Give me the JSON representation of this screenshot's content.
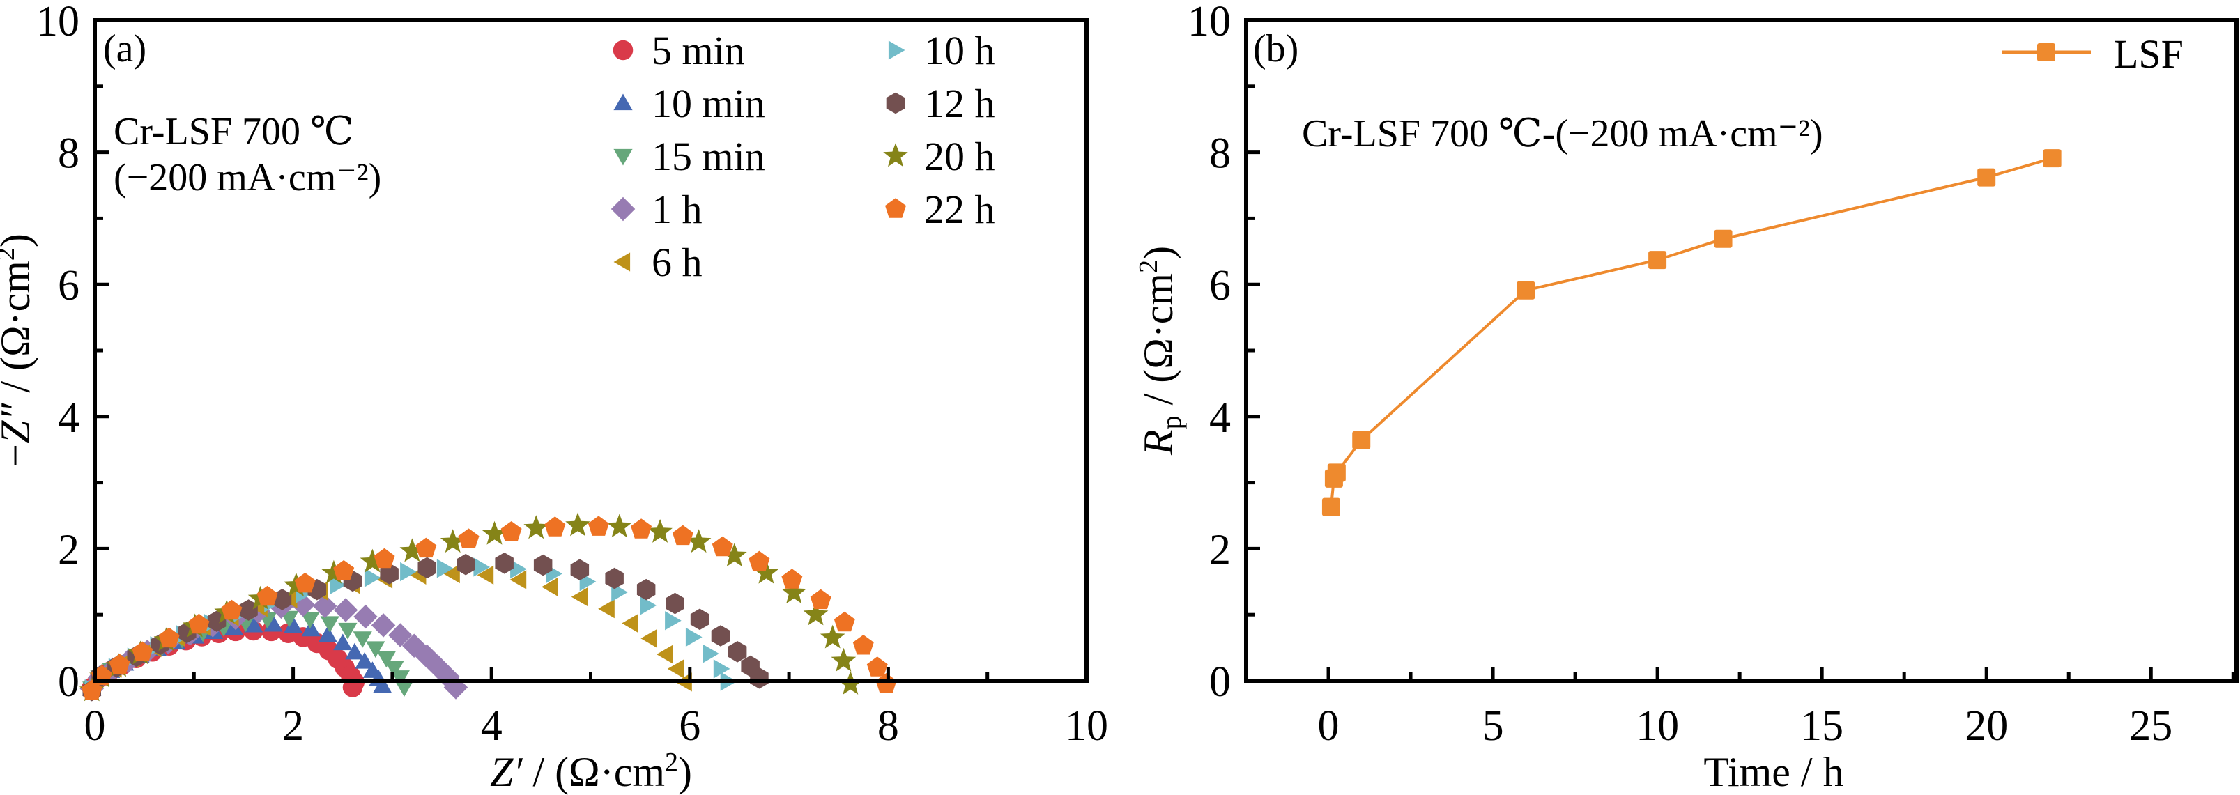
{
  "figure": {
    "panels": [
      "(a)",
      "(b)"
    ]
  },
  "chart_data": [
    {
      "id": "a",
      "type": "scatter",
      "panel_label": "(a)",
      "title": "",
      "annotation_lines": [
        "Cr-LSF 700 ℃",
        "(−200 mA·cm⁻²)"
      ],
      "xlabel": {
        "italic": "Z′",
        "rest": " / (Ω·cm",
        "sup": "2",
        "close": ")"
      },
      "ylabel": {
        "prefix": "−",
        "italic": "Z″",
        "rest": " / (Ω·cm",
        "sup": "2",
        "close": ")"
      },
      "xlim": [
        0,
        10
      ],
      "ylim": [
        0,
        10
      ],
      "xticks": [
        0,
        2,
        4,
        6,
        8,
        10
      ],
      "yticks": [
        0,
        2,
        4,
        6,
        8,
        10
      ],
      "xtick_labels": [
        "0",
        "2",
        "4",
        "6",
        "8",
        "10"
      ],
      "ytick_labels": [
        "0",
        "2",
        "4",
        "6",
        "8",
        "10"
      ],
      "minor_ticks": true,
      "grid": false,
      "legend": {
        "placement": "top-right",
        "columns": 2
      },
      "series": [
        {
          "name": "5 min",
          "marker": "circle",
          "color": "#D93A49",
          "points": [
            [
              -0.03,
              -0.1
            ],
            [
              0.05,
              0.05
            ],
            [
              0.15,
              0.14
            ],
            [
              0.28,
              0.24
            ],
            [
              0.42,
              0.34
            ],
            [
              0.58,
              0.44
            ],
            [
              0.75,
              0.53
            ],
            [
              0.92,
              0.61
            ],
            [
              1.08,
              0.67
            ],
            [
              1.25,
              0.72
            ],
            [
              1.42,
              0.75
            ],
            [
              1.6,
              0.76
            ],
            [
              1.78,
              0.75
            ],
            [
              1.95,
              0.72
            ],
            [
              2.1,
              0.66
            ],
            [
              2.24,
              0.57
            ],
            [
              2.36,
              0.46
            ],
            [
              2.45,
              0.33
            ],
            [
              2.52,
              0.2
            ],
            [
              2.58,
              0.08
            ],
            [
              2.62,
              -0.02
            ],
            [
              2.6,
              -0.1
            ]
          ]
        },
        {
          "name": "10 min",
          "marker": "triangle-up",
          "color": "#4568B2",
          "points": [
            [
              -0.03,
              -0.12
            ],
            [
              0.05,
              0.05
            ],
            [
              0.16,
              0.15
            ],
            [
              0.3,
              0.26
            ],
            [
              0.46,
              0.37
            ],
            [
              0.63,
              0.48
            ],
            [
              0.82,
              0.58
            ],
            [
              1.01,
              0.67
            ],
            [
              1.2,
              0.74
            ],
            [
              1.4,
              0.8
            ],
            [
              1.6,
              0.84
            ],
            [
              1.8,
              0.85
            ],
            [
              2.0,
              0.83
            ],
            [
              2.18,
              0.78
            ],
            [
              2.35,
              0.69
            ],
            [
              2.5,
              0.57
            ],
            [
              2.62,
              0.43
            ],
            [
              2.72,
              0.29
            ],
            [
              2.8,
              0.15
            ],
            [
              2.86,
              0.03
            ],
            [
              2.9,
              -0.08
            ]
          ]
        },
        {
          "name": "15 min",
          "marker": "triangle-down",
          "color": "#66A77B",
          "points": [
            [
              -0.03,
              -0.12
            ],
            [
              0.05,
              0.05
            ],
            [
              0.17,
              0.16
            ],
            [
              0.32,
              0.28
            ],
            [
              0.49,
              0.4
            ],
            [
              0.68,
              0.52
            ],
            [
              0.88,
              0.63
            ],
            [
              1.09,
              0.73
            ],
            [
              1.3,
              0.81
            ],
            [
              1.52,
              0.88
            ],
            [
              1.74,
              0.93
            ],
            [
              1.96,
              0.95
            ],
            [
              2.17,
              0.93
            ],
            [
              2.37,
              0.87
            ],
            [
              2.55,
              0.77
            ],
            [
              2.7,
              0.64
            ],
            [
              2.83,
              0.49
            ],
            [
              2.94,
              0.34
            ],
            [
              3.02,
              0.19
            ],
            [
              3.08,
              0.05
            ],
            [
              3.12,
              -0.1
            ]
          ]
        },
        {
          "name": "1 h",
          "marker": "diamond",
          "color": "#977CB2",
          "points": [
            [
              -0.03,
              -0.12
            ],
            [
              0.05,
              0.05
            ],
            [
              0.18,
              0.17
            ],
            [
              0.34,
              0.3
            ],
            [
              0.53,
              0.44
            ],
            [
              0.74,
              0.58
            ],
            [
              0.96,
              0.71
            ],
            [
              1.19,
              0.84
            ],
            [
              1.42,
              0.95
            ],
            [
              1.65,
              1.05
            ],
            [
              1.88,
              1.12
            ],
            [
              2.1,
              1.15
            ],
            [
              2.32,
              1.13
            ],
            [
              2.53,
              1.07
            ],
            [
              2.73,
              0.97
            ],
            [
              2.91,
              0.84
            ],
            [
              3.08,
              0.69
            ],
            [
              3.22,
              0.53
            ],
            [
              3.35,
              0.37
            ],
            [
              3.46,
              0.21
            ],
            [
              3.56,
              0.06
            ],
            [
              3.64,
              -0.1
            ]
          ]
        },
        {
          "name": "6 h",
          "marker": "triangle-left",
          "color": "#BE921A",
          "points": [
            [
              -0.03,
              -0.12
            ],
            [
              0.06,
              0.06
            ],
            [
              0.2,
              0.19
            ],
            [
              0.38,
              0.34
            ],
            [
              0.6,
              0.5
            ],
            [
              0.84,
              0.66
            ],
            [
              1.1,
              0.82
            ],
            [
              1.38,
              0.97
            ],
            [
              1.67,
              1.11
            ],
            [
              1.97,
              1.24
            ],
            [
              2.28,
              1.36
            ],
            [
              2.6,
              1.46
            ],
            [
              2.93,
              1.54
            ],
            [
              3.27,
              1.6
            ],
            [
              3.61,
              1.62
            ],
            [
              3.95,
              1.6
            ],
            [
              4.28,
              1.53
            ],
            [
              4.6,
              1.42
            ],
            [
              4.9,
              1.27
            ],
            [
              5.17,
              1.09
            ],
            [
              5.41,
              0.87
            ],
            [
              5.6,
              0.64
            ],
            [
              5.76,
              0.4
            ],
            [
              5.87,
              0.18
            ],
            [
              5.95,
              -0.02
            ]
          ]
        },
        {
          "name": "10 h",
          "marker": "triangle-right",
          "color": "#72BCC9",
          "points": [
            [
              -0.03,
              -0.12
            ],
            [
              0.06,
              0.07
            ],
            [
              0.21,
              0.2
            ],
            [
              0.4,
              0.36
            ],
            [
              0.63,
              0.53
            ],
            [
              0.89,
              0.7
            ],
            [
              1.17,
              0.87
            ],
            [
              1.47,
              1.03
            ],
            [
              1.78,
              1.18
            ],
            [
              2.1,
              1.32
            ],
            [
              2.44,
              1.45
            ],
            [
              2.79,
              1.56
            ],
            [
              3.15,
              1.65
            ],
            [
              3.52,
              1.7
            ],
            [
              3.89,
              1.72
            ],
            [
              4.26,
              1.69
            ],
            [
              4.62,
              1.62
            ],
            [
              4.96,
              1.5
            ],
            [
              5.28,
              1.34
            ],
            [
              5.57,
              1.14
            ],
            [
              5.82,
              0.91
            ],
            [
              6.03,
              0.66
            ],
            [
              6.2,
              0.41
            ],
            [
              6.31,
              0.18
            ],
            [
              6.38,
              -0.01
            ]
          ]
        },
        {
          "name": "12 h",
          "marker": "hexagon",
          "color": "#735050",
          "points": [
            [
              -0.03,
              -0.15
            ],
            [
              0.06,
              0.07
            ],
            [
              0.22,
              0.21
            ],
            [
              0.42,
              0.37
            ],
            [
              0.66,
              0.55
            ],
            [
              0.93,
              0.73
            ],
            [
              1.23,
              0.9
            ],
            [
              1.55,
              1.07
            ],
            [
              1.89,
              1.23
            ],
            [
              2.24,
              1.38
            ],
            [
              2.6,
              1.51
            ],
            [
              2.97,
              1.62
            ],
            [
              3.35,
              1.71
            ],
            [
              3.74,
              1.76
            ],
            [
              4.13,
              1.78
            ],
            [
              4.52,
              1.75
            ],
            [
              4.89,
              1.68
            ],
            [
              5.24,
              1.55
            ],
            [
              5.56,
              1.38
            ],
            [
              5.85,
              1.17
            ],
            [
              6.1,
              0.93
            ],
            [
              6.31,
              0.68
            ],
            [
              6.48,
              0.44
            ],
            [
              6.61,
              0.22
            ],
            [
              6.7,
              0.04
            ]
          ]
        },
        {
          "name": "20 h",
          "marker": "star",
          "color": "#858418",
          "points": [
            [
              -0.03,
              -0.15
            ],
            [
              0.07,
              0.06
            ],
            [
              0.24,
              0.22
            ],
            [
              0.46,
              0.41
            ],
            [
              0.72,
              0.61
            ],
            [
              1.01,
              0.82
            ],
            [
              1.33,
              1.03
            ],
            [
              1.67,
              1.24
            ],
            [
              2.03,
              1.44
            ],
            [
              2.41,
              1.63
            ],
            [
              2.8,
              1.8
            ],
            [
              3.2,
              1.96
            ],
            [
              3.61,
              2.1
            ],
            [
              4.03,
              2.22
            ],
            [
              4.45,
              2.31
            ],
            [
              4.87,
              2.35
            ],
            [
              5.29,
              2.33
            ],
            [
              5.7,
              2.25
            ],
            [
              6.09,
              2.1
            ],
            [
              6.45,
              1.89
            ],
            [
              6.77,
              1.63
            ],
            [
              7.05,
              1.33
            ],
            [
              7.27,
              1.0
            ],
            [
              7.44,
              0.65
            ],
            [
              7.55,
              0.3
            ],
            [
              7.62,
              -0.05
            ]
          ]
        },
        {
          "name": "22 h",
          "marker": "pentagon",
          "color": "#EE7223",
          "points": [
            [
              -0.03,
              -0.15
            ],
            [
              0.07,
              0.07
            ],
            [
              0.25,
              0.24
            ],
            [
              0.48,
              0.43
            ],
            [
              0.75,
              0.64
            ],
            [
              1.05,
              0.85
            ],
            [
              1.38,
              1.06
            ],
            [
              1.74,
              1.27
            ],
            [
              2.12,
              1.47
            ],
            [
              2.51,
              1.66
            ],
            [
              2.92,
              1.84
            ],
            [
              3.34,
              2.0
            ],
            [
              3.77,
              2.14
            ],
            [
              4.2,
              2.25
            ],
            [
              4.64,
              2.32
            ],
            [
              5.08,
              2.33
            ],
            [
              5.51,
              2.29
            ],
            [
              5.93,
              2.19
            ],
            [
              6.33,
              2.02
            ],
            [
              6.7,
              1.8
            ],
            [
              7.03,
              1.53
            ],
            [
              7.32,
              1.22
            ],
            [
              7.56,
              0.88
            ],
            [
              7.75,
              0.53
            ],
            [
              7.89,
              0.2
            ],
            [
              7.98,
              -0.05
            ]
          ]
        }
      ]
    },
    {
      "id": "b",
      "type": "line",
      "panel_label": "(b)",
      "title": "",
      "annotation_lines": [
        "Cr-LSF 700 ℃-(−200 mA·cm⁻²)"
      ],
      "xlabel": {
        "text": "Time / h"
      },
      "ylabel": {
        "italic": "R",
        "sub": "p",
        "rest": " / (Ω·cm",
        "sup": "2",
        "close": ")"
      },
      "xlim": [
        -2.5,
        27.6
      ],
      "ylim": [
        0,
        10
      ],
      "xticks": [
        0,
        5,
        10,
        15,
        20,
        25
      ],
      "yticks": [
        0,
        2,
        4,
        6,
        8,
        10
      ],
      "xtick_labels": [
        "0",
        "5",
        "10",
        "15",
        "20",
        "25"
      ],
      "ytick_labels": [
        "0",
        "2",
        "4",
        "6",
        "8",
        "10"
      ],
      "minor_ticks": true,
      "grid": false,
      "legend": {
        "placement": "top-right",
        "entries": [
          "LSF"
        ]
      },
      "series": [
        {
          "name": "LSF",
          "marker": "square",
          "color": "#EE8A2E",
          "x": [
            0.083,
            0.167,
            0.25,
            1,
            6,
            10,
            12,
            20,
            22
          ],
          "y": [
            2.63,
            3.06,
            3.15,
            3.64,
            5.91,
            6.37,
            6.69,
            7.62,
            7.91
          ]
        }
      ]
    }
  ]
}
